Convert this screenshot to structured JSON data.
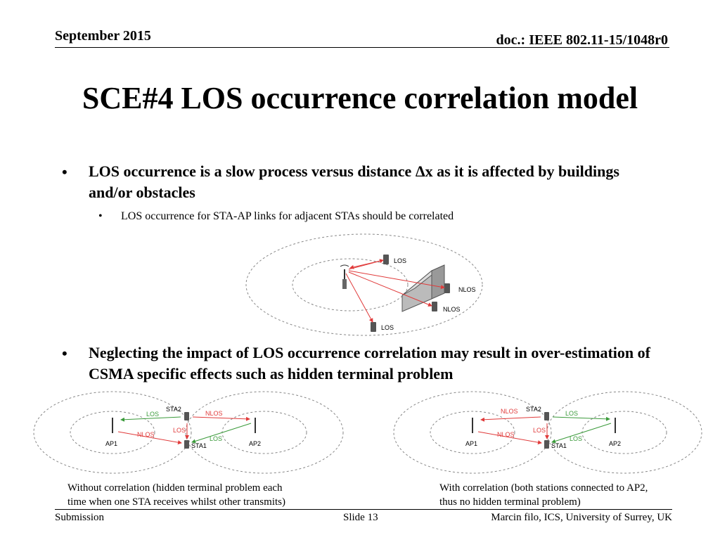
{
  "header": {
    "date": "September 2015",
    "doc_id": "doc.: IEEE 802.11-15/1048r0"
  },
  "title": "SCE#4 LOS occurrence correlation model",
  "bullets": [
    {
      "marker": "•",
      "text": "LOS occurrence is a slow process versus distance Δx as it is affected by buildings and/or obstacles",
      "sub": [
        {
          "marker": "•",
          "text": "LOS occurrence for STA-AP links for adjacent STAs should be correlated"
        }
      ]
    },
    {
      "marker": "•",
      "text": "Neglecting the impact of LOS occurrence correlation may result in over-estimation of CSMA specific effects such as hidden terminal problem"
    }
  ],
  "diagram_top": {
    "labels": {
      "los_1": "LOS",
      "nlos_1": "NLOS",
      "nlos_2": "NLOS",
      "los_2": "LOS"
    }
  },
  "diagram_left": {
    "labels": {
      "sta2": "STA2",
      "sta1": "STA1",
      "ap1": "AP1",
      "ap2": "AP2",
      "l1": "LOS",
      "l2": "NLOS",
      "l3": "LOS",
      "l4": "NLOS",
      "l5": "LOS"
    }
  },
  "diagram_right": {
    "labels": {
      "sta2": "STA2",
      "sta1": "STA1",
      "ap1": "AP1",
      "ap2": "AP2",
      "l1": "NLOS",
      "l2": "LOS",
      "l3": "LOS",
      "l4": "NLOS",
      "l5": "LOS"
    }
  },
  "captions": {
    "left": [
      "Without correlation (hidden terminal problem each",
      "time when one STA receives whilst other transmits)"
    ],
    "right": [
      "With correlation (both stations connected to AP2,",
      "thus no hidden terminal problem)"
    ]
  },
  "footer": {
    "left": "Submission",
    "center": "Slide 13",
    "right": "Marcin filo, ICS, University of Surrey, UK"
  },
  "colors": {
    "los_link": "#3a9a3a",
    "nlos_link": "#e03a3a",
    "ring": "#888888"
  }
}
